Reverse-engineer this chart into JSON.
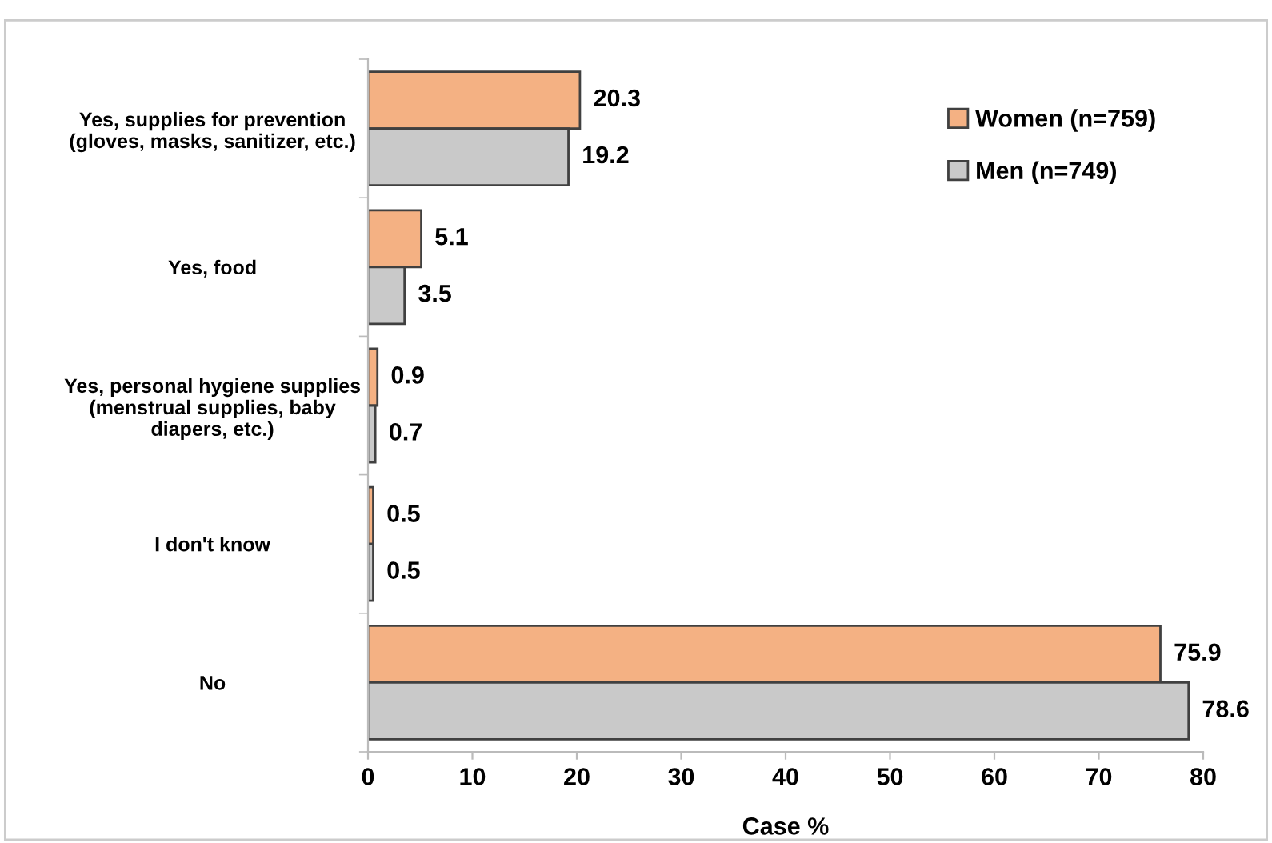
{
  "chart_data": {
    "type": "bar",
    "orientation": "horizontal",
    "xlabel": "Case %",
    "categories": [
      "Yes, supplies for prevention\n(gloves, masks, sanitizer, etc.)",
      "Yes, food",
      "Yes, personal hygiene supplies\n(menstrual supplies, baby\ndiapers, etc.)",
      "I don't know",
      "No"
    ],
    "series": [
      {
        "name": "Women (n=759)",
        "color": "#f4b183",
        "values": [
          20.3,
          5.1,
          0.9,
          0.5,
          75.9
        ]
      },
      {
        "name": "Men (n=749)",
        "color": "#c9c9c9",
        "values": [
          19.2,
          3.5,
          0.7,
          0.5,
          78.6
        ]
      }
    ],
    "xlim": [
      0,
      80
    ],
    "xticks": [
      0,
      10,
      20,
      30,
      40,
      50,
      60,
      70,
      80
    ],
    "data_labels": true,
    "legend": "top right",
    "grid": false
  }
}
